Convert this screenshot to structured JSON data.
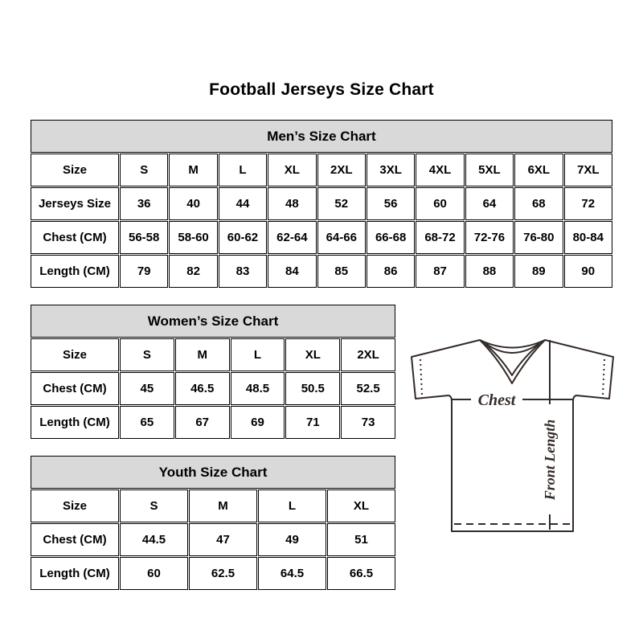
{
  "page": {
    "title": "Football Jerseys Size Chart"
  },
  "tables": {
    "mens": {
      "title": "Men’s Size Chart",
      "rows": [
        [
          "Size",
          "S",
          "M",
          "L",
          "XL",
          "2XL",
          "3XL",
          "4XL",
          "5XL",
          "6XL",
          "7XL"
        ],
        [
          "Jerseys Size",
          "36",
          "40",
          "44",
          "48",
          "52",
          "56",
          "60",
          "64",
          "68",
          "72"
        ],
        [
          "Chest (CM)",
          "56-58",
          "58-60",
          "60-62",
          "62-64",
          "64-66",
          "66-68",
          "68-72",
          "72-76",
          "76-80",
          "80-84"
        ],
        [
          "Length (CM)",
          "79",
          "82",
          "83",
          "84",
          "85",
          "86",
          "87",
          "88",
          "89",
          "90"
        ]
      ]
    },
    "womens": {
      "title": "Women’s Size Chart",
      "rows": [
        [
          "Size",
          "S",
          "M",
          "L",
          "XL",
          "2XL"
        ],
        [
          "Chest (CM)",
          "45",
          "46.5",
          "48.5",
          "50.5",
          "52.5"
        ],
        [
          "Length (CM)",
          "65",
          "67",
          "69",
          "71",
          "73"
        ]
      ]
    },
    "youth": {
      "title": "Youth Size Chart",
      "rows": [
        [
          "Size",
          "S",
          "M",
          "L",
          "XL"
        ],
        [
          "Chest (CM)",
          "44.5",
          "47",
          "49",
          "51"
        ],
        [
          "Length (CM)",
          "60",
          "62.5",
          "64.5",
          "66.5"
        ]
      ]
    }
  },
  "diagram": {
    "chest_label": "Chest",
    "front_length_label": "Front Length"
  },
  "colors": {
    "table_header_bg": "#d9d9d9",
    "table_border": "#000000",
    "jersey_stroke": "#332b27",
    "text": "#000000"
  }
}
